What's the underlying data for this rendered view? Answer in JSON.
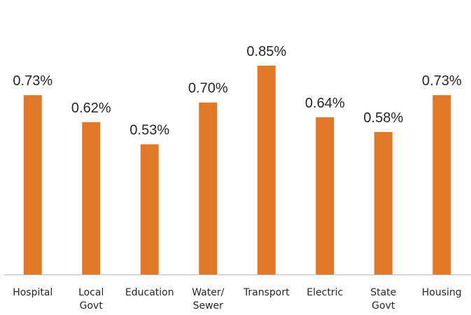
{
  "chart_data": {
    "type": "bar",
    "categories": [
      [
        "Hospital"
      ],
      [
        "Local",
        "Govt"
      ],
      [
        "Education"
      ],
      [
        "Water/",
        "Sewer"
      ],
      [
        "Transport"
      ],
      [
        "Electric"
      ],
      [
        "State",
        "Govt"
      ],
      [
        "Housing"
      ]
    ],
    "values": [
      0.73,
      0.62,
      0.53,
      0.7,
      0.85,
      0.64,
      0.58,
      0.73
    ],
    "data_labels": [
      "0.73%",
      "0.62%",
      "0.53%",
      "0.70%",
      "0.85%",
      "0.64%",
      "0.58%",
      "0.73%"
    ],
    "title": "",
    "xlabel": "",
    "ylabel": "",
    "ylim": [
      0,
      0.9
    ],
    "grid": false,
    "legend": "none",
    "bar_color": "#E07828",
    "axis_color": "#BFBFBF"
  }
}
